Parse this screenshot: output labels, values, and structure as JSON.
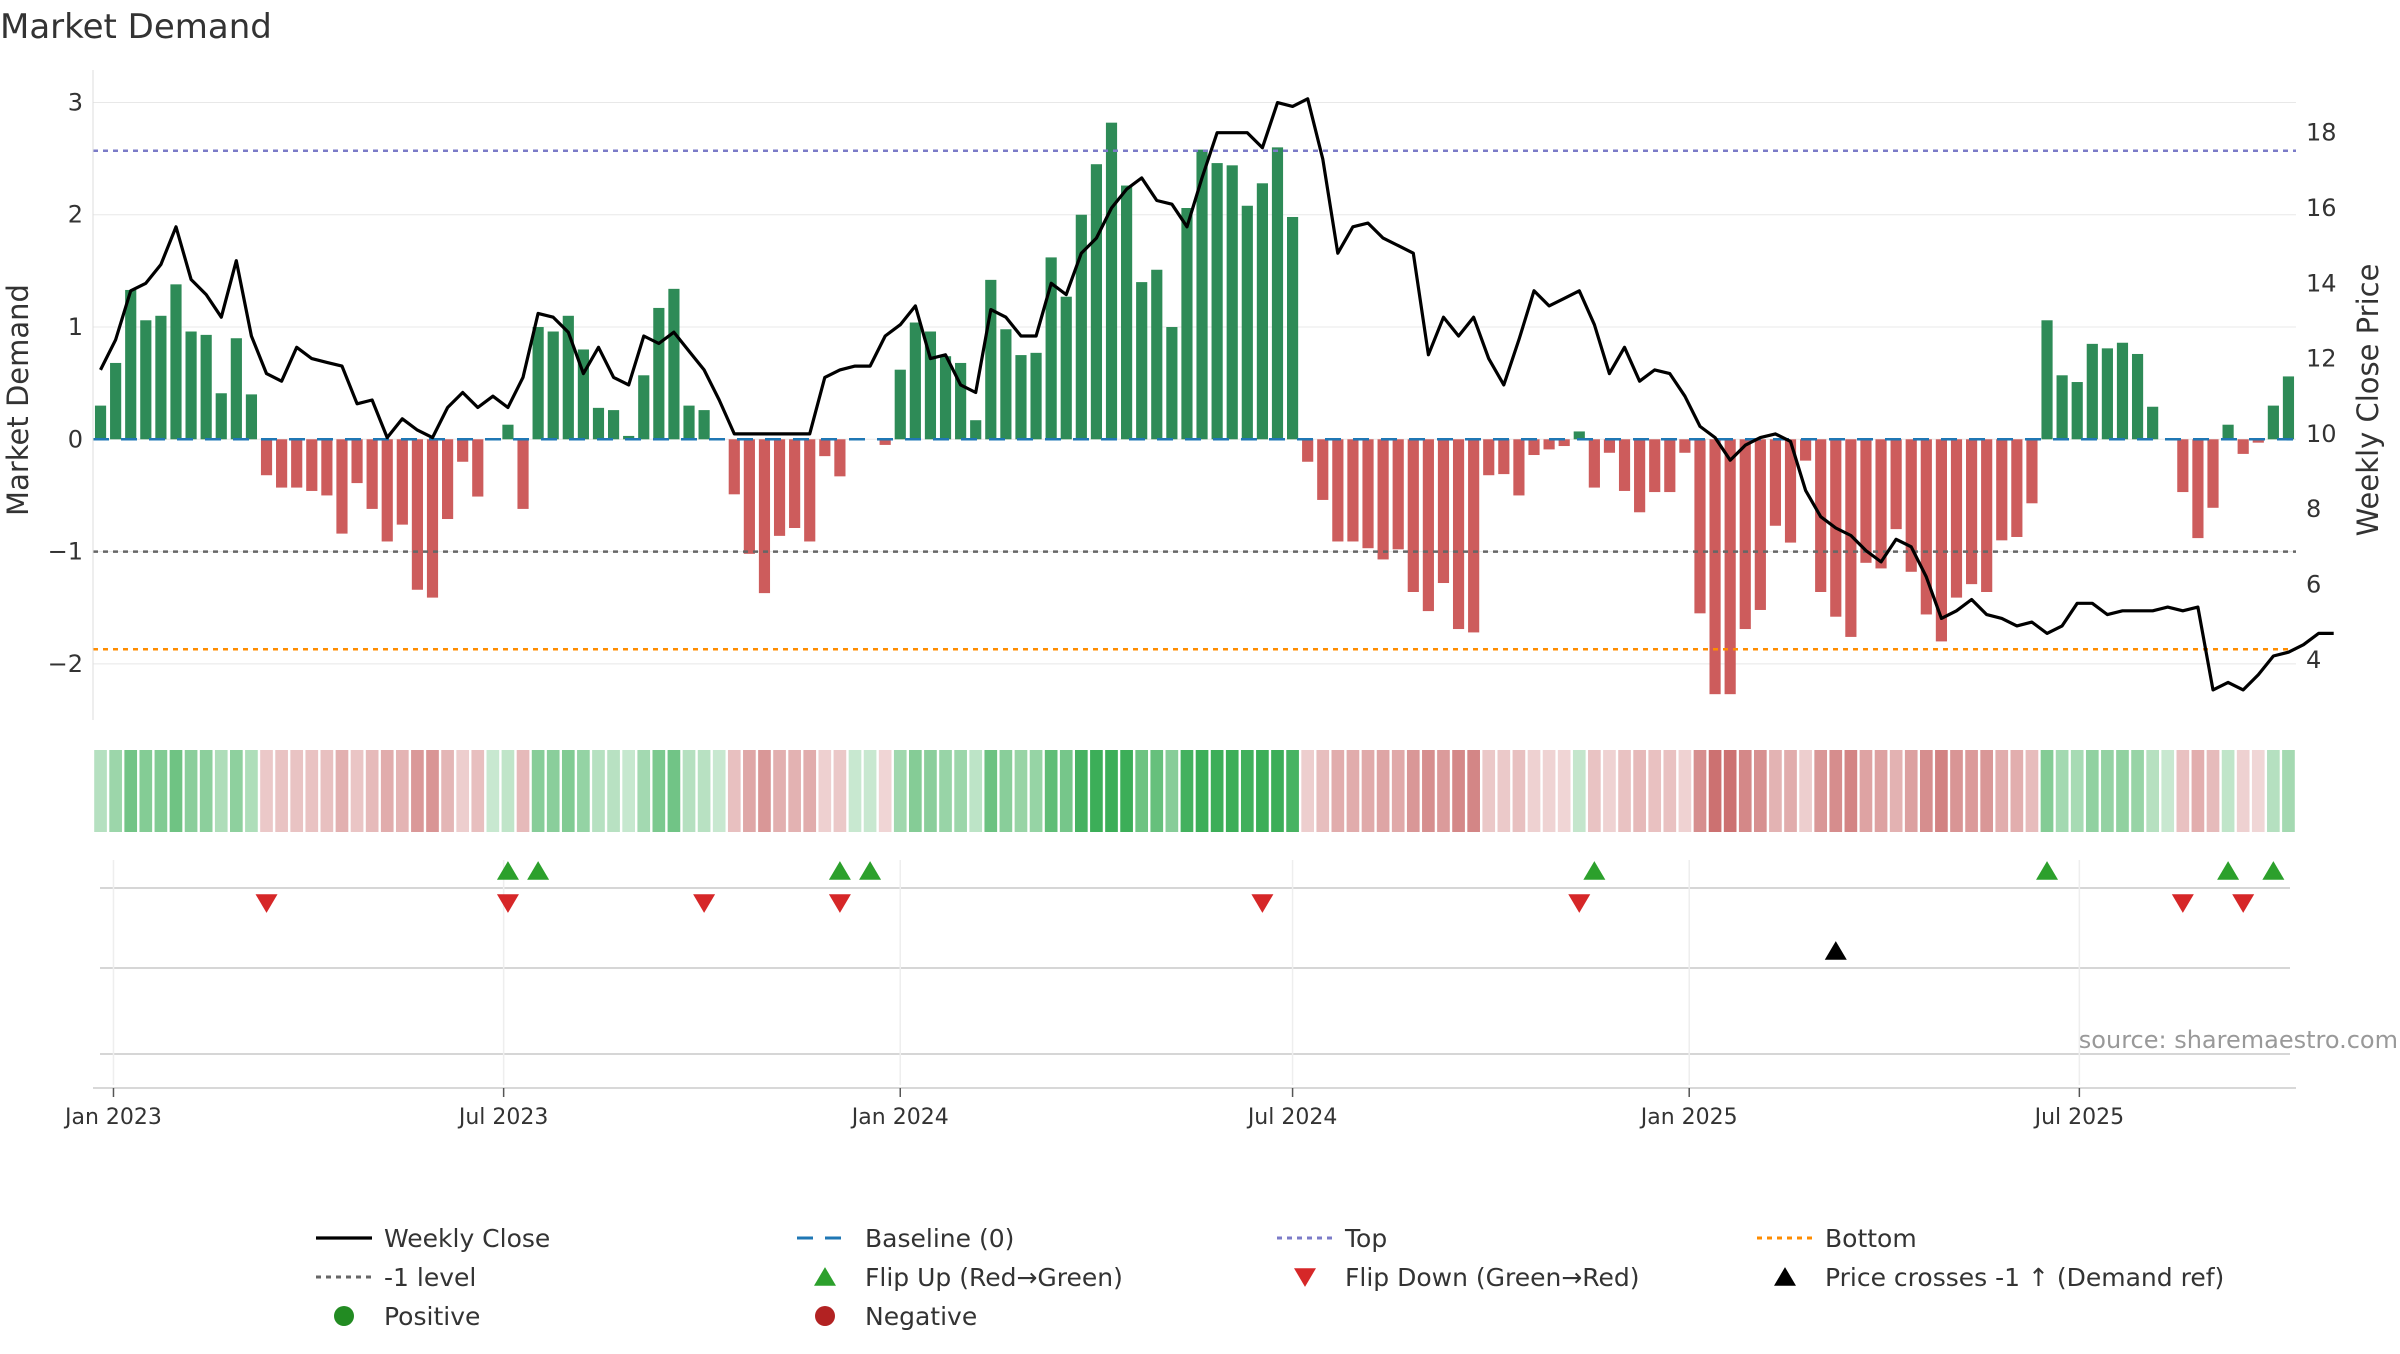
{
  "title": "Market Demand",
  "source": "source: sharemaestro.com",
  "colors": {
    "positive": "#2e8b57",
    "negative": "#cd5c5c",
    "price": "#000000",
    "baseline": "#1f77b4",
    "top": "#7b7bc8",
    "minus1": "#666666",
    "bottom": "#ff8c00",
    "flip_up": "#2ca02c",
    "flip_down": "#d62728",
    "cross": "#000000",
    "grid": "#e8e8e8",
    "legend_positive": "#228b22",
    "legend_negative": "#b22222"
  },
  "chart_data": {
    "type": "bar",
    "start_date": "2022-12-26",
    "period_days": 7,
    "values": [
      0.3,
      0.68,
      1.33,
      1.06,
      1.1,
      1.38,
      0.96,
      0.93,
      0.41,
      0.9,
      0.4,
      -0.32,
      -0.43,
      -0.43,
      -0.46,
      -0.5,
      -0.84,
      -0.39,
      -0.62,
      -0.91,
      -0.76,
      -1.34,
      -1.41,
      -0.71,
      -0.2,
      -0.51,
      0,
      0.13,
      -0.62,
      1.0,
      0.96,
      1.1,
      0.8,
      0.28,
      0.26,
      0.03,
      0.57,
      1.17,
      1.34,
      0.3,
      0.26,
      0,
      -0.49,
      -1.02,
      -1.37,
      -0.86,
      -0.79,
      -0.91,
      -0.15,
      -0.33,
      0,
      0,
      -0.05,
      0.62,
      1.04,
      0.96,
      0.74,
      0.68,
      0.17,
      1.42,
      0.98,
      0.75,
      0.77,
      1.62,
      1.27,
      2.0,
      2.45,
      2.82,
      2.26,
      1.4,
      1.51,
      1.0,
      2.06,
      2.58,
      2.46,
      2.44,
      2.08,
      2.28,
      2.6,
      1.98,
      -0.2,
      -0.54,
      -0.91,
      -0.91,
      -0.97,
      -1.07,
      -0.98,
      -1.36,
      -1.53,
      -1.28,
      -1.69,
      -1.72,
      -0.32,
      -0.31,
      -0.5,
      -0.14,
      -0.09,
      -0.06,
      0.07,
      -0.43,
      -0.12,
      -0.46,
      -0.65,
      -0.47,
      -0.47,
      -0.12,
      -1.55,
      -2.27,
      -2.27,
      -1.69,
      -1.52,
      -0.77,
      -0.92,
      -0.19,
      -1.36,
      -1.58,
      -1.76,
      -1.1,
      -1.15,
      -0.8,
      -1.18,
      -1.56,
      -1.8,
      -1.41,
      -1.29,
      -1.36,
      -0.9,
      -0.87,
      -0.57,
      1.06,
      0.57,
      0.51,
      0.85,
      0.81,
      0.86,
      0.76,
      0.29,
      0,
      -0.47,
      -0.88,
      -0.61,
      0.13,
      -0.13,
      -0.03,
      0.3,
      0.56
    ],
    "price": [
      11.7,
      12.5,
      13.8,
      14.0,
      14.5,
      15.5,
      14.1,
      13.7,
      13.1,
      14.6,
      12.6,
      11.6,
      11.4,
      12.3,
      12.0,
      11.9,
      11.8,
      10.8,
      10.9,
      9.9,
      10.4,
      10.1,
      9.9,
      10.7,
      11.1,
      10.7,
      11.0,
      10.7,
      11.5,
      13.2,
      13.1,
      12.7,
      11.6,
      12.3,
      11.5,
      11.3,
      12.6,
      12.4,
      12.7,
      12.2,
      11.7,
      10.9,
      10.0,
      10.0,
      10.0,
      10.0,
      10.0,
      10.0,
      11.5,
      11.7,
      11.8,
      11.8,
      12.6,
      12.9,
      13.4,
      12.0,
      12.1,
      11.3,
      11.1,
      13.3,
      13.1,
      12.6,
      12.6,
      14.0,
      13.7,
      14.8,
      15.2,
      16.0,
      16.5,
      16.8,
      16.2,
      16.1,
      15.5,
      16.8,
      18.0,
      18.0,
      18.0,
      17.6,
      18.8,
      18.7,
      18.9,
      17.3,
      14.8,
      15.5,
      15.6,
      15.2,
      15.0,
      14.8,
      12.1,
      13.1,
      12.6,
      13.1,
      12.0,
      11.3,
      12.5,
      13.8,
      13.4,
      13.6,
      13.8,
      12.9,
      11.6,
      12.3,
      11.4,
      11.7,
      11.6,
      11.0,
      10.2,
      9.9,
      9.3,
      9.7,
      9.9,
      10.0,
      9.8,
      8.5,
      7.8,
      7.5,
      7.3,
      6.9,
      6.6,
      7.2,
      7.0,
      6.2,
      5.1,
      5.3,
      5.6,
      5.2,
      5.1,
      4.9,
      5.0,
      4.7,
      4.9,
      5.5,
      5.5,
      5.2,
      5.3,
      5.3,
      5.3,
      5.4,
      5.3,
      5.4,
      3.2,
      3.4,
      3.2,
      3.6,
      4.1,
      4.2,
      4.4,
      4.7,
      4.7
    ],
    "flip_up_indices": [
      27,
      29,
      49,
      51,
      99,
      129,
      141,
      144
    ],
    "flip_down_indices": [
      11,
      27,
      40,
      49,
      77,
      98,
      138,
      142
    ],
    "cross_up_indices": [
      115
    ],
    "ylim_left": [
      -2.5,
      3.2
    ],
    "ylim_right": [
      2.4,
      19.4
    ],
    "top_level": 2.57,
    "minus1_level": -1.0,
    "bottom_level": -1.87,
    "ylabel_left": "Market Demand",
    "ylabel_right": "Weekly Close Price",
    "yticks_left": [
      {
        "value": 3,
        "label": "3"
      },
      {
        "value": 2,
        "label": "2"
      },
      {
        "value": 1,
        "label": "1"
      },
      {
        "value": 0,
        "label": "0"
      },
      {
        "value": -1,
        "label": "−1"
      },
      {
        "value": -2,
        "label": "−2"
      }
    ],
    "yticks_right": [
      {
        "value": 18,
        "label": "18"
      },
      {
        "value": 16,
        "label": "16"
      },
      {
        "value": 14,
        "label": "14"
      },
      {
        "value": 12,
        "label": "12"
      },
      {
        "value": 10,
        "label": "10"
      },
      {
        "value": 8,
        "label": "8"
      },
      {
        "value": 6,
        "label": "6"
      },
      {
        "value": 4,
        "label": "4"
      }
    ],
    "xticks": [
      {
        "date": "2023-01-01",
        "label": "Jan 2023"
      },
      {
        "date": "2023-07-01",
        "label": "Jul 2023"
      },
      {
        "date": "2024-01-01",
        "label": "Jan 2024"
      },
      {
        "date": "2024-07-01",
        "label": "Jul 2024"
      },
      {
        "date": "2025-01-01",
        "label": "Jan 2025"
      },
      {
        "date": "2025-07-01",
        "label": "Jul 2025"
      }
    ]
  },
  "legend": [
    {
      "label": "Weekly Close",
      "symbol": "line",
      "color": "#000000"
    },
    {
      "label": "Baseline (0)",
      "symbol": "dash",
      "color": "#1f77b4"
    },
    {
      "label": "Top",
      "symbol": "dot",
      "color": "#7b7bc8"
    },
    {
      "label": "Bottom",
      "symbol": "dot",
      "color": "#ff8c00"
    },
    {
      "label": "-1 level",
      "symbol": "dot",
      "color": "#666666"
    },
    {
      "label": "Flip Up (Red→Green)",
      "symbol": "tri-up",
      "color": "#2ca02c"
    },
    {
      "label": "Flip Down (Green→Red)",
      "symbol": "tri-down",
      "color": "#d62728"
    },
    {
      "label": "Price crosses -1 ↑ (Demand ref)",
      "symbol": "tri-up",
      "color": "#000000"
    },
    {
      "label": "Positive",
      "symbol": "circle",
      "color": "#228b22"
    },
    {
      "label": "Negative",
      "symbol": "circle",
      "color": "#b22222"
    }
  ]
}
